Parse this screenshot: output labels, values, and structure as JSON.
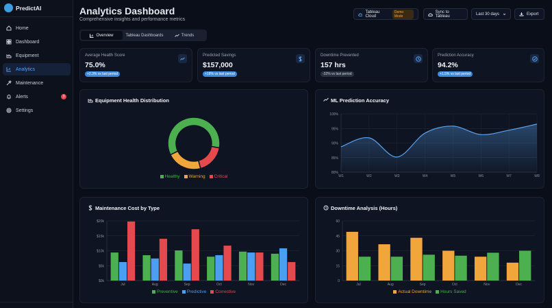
{
  "sidebar": {
    "brand": "PredictAI",
    "nav": [
      {
        "label": "Home"
      },
      {
        "label": "Dashboard"
      },
      {
        "label": "Equipment"
      },
      {
        "label": "Analytics"
      },
      {
        "label": "Maintenance"
      },
      {
        "label": "Alerts",
        "badge": "3"
      },
      {
        "label": "Settings"
      }
    ]
  },
  "header": {
    "title": "Analytics Dashboard",
    "subtitle": "Comprehensive insights and performance metrics",
    "tableau": "Tableau Cloud",
    "demo": "Demo Mode",
    "sync": "Sync to Tableau",
    "range": "Last 30 days",
    "export": "Export"
  },
  "tabs": [
    "Overview",
    "Tableau Dashboards",
    "Trends"
  ],
  "kpis": [
    {
      "label": "Average Health Score",
      "value": "75.0%",
      "change": "+2.3% vs last period"
    },
    {
      "label": "Predicted Savings",
      "value": "$157,000",
      "change": "+18% vs last period"
    },
    {
      "label": "Downtime Prevented",
      "value": "157 hrs",
      "change": "-32% vs last period"
    },
    {
      "label": "Prediction Accuracy",
      "value": "94.2%",
      "change": "+1.5% vs last period"
    }
  ],
  "chart_data": [
    {
      "type": "pie",
      "title": "Equipment Health Distribution",
      "categories": [
        "Healthy",
        "Warning",
        "Critical"
      ],
      "values": [
        60,
        22,
        18
      ],
      "colors": [
        "#4caf50",
        "#f0a63a",
        "#e5484d"
      ],
      "donut": true
    },
    {
      "type": "line",
      "title": "ML Prediction Accuracy",
      "categories": [
        "W1",
        "W2",
        "W3",
        "W4",
        "W5",
        "W6",
        "W7",
        "W8"
      ],
      "values": [
        88.7,
        91.8,
        85.2,
        93.4,
        95.8,
        92.9,
        94.4,
        96.5
      ],
      "color": "#5aa4f0",
      "ylim": [
        80,
        100
      ],
      "yticks": [
        {
          "value": 80,
          "label": "80%"
        },
        {
          "value": 85,
          "label": "85%"
        },
        {
          "value": 90,
          "label": "90%"
        },
        {
          "value": 95,
          "label": "95%"
        },
        {
          "value": 100,
          "label": "100%"
        }
      ],
      "grid": true
    },
    {
      "type": "bar",
      "title": "Maintenance Cost by Type",
      "categories": [
        "Jul",
        "Aug",
        "Sep",
        "Oct",
        "Nov",
        "Dec"
      ],
      "series": [
        {
          "name": "Preventive",
          "color": "#4caf50",
          "values": [
            9400,
            8500,
            10100,
            8000,
            9700,
            9000
          ]
        },
        {
          "name": "Predictive",
          "color": "#4a9ff0",
          "values": [
            6200,
            7400,
            5700,
            8500,
            9400,
            10800
          ]
        },
        {
          "name": "Corrective",
          "color": "#e5484d",
          "values": [
            19800,
            14000,
            17200,
            11700,
            9400,
            6200
          ]
        }
      ],
      "ylim": [
        0,
        20000
      ],
      "yticks": [
        {
          "value": 0,
          "label": "$0k"
        },
        {
          "value": 5000,
          "label": "$5k"
        },
        {
          "value": 10000,
          "label": "$10k"
        },
        {
          "value": 15000,
          "label": "$15k"
        },
        {
          "value": 20000,
          "label": "$20k"
        }
      ],
      "grid": true
    },
    {
      "type": "bar",
      "title": "Downtime Analysis (Hours)",
      "categories": [
        "Jul",
        "Aug",
        "Sep",
        "Oct",
        "Nov",
        "Dec"
      ],
      "series": [
        {
          "name": "Actual Downtime",
          "color": "#f0a63a",
          "values": [
            49,
            36.5,
            43,
            30,
            24,
            18
          ]
        },
        {
          "name": "Hours Saved",
          "color": "#4caf50",
          "values": [
            24,
            24,
            26,
            25,
            28,
            30
          ]
        }
      ],
      "ylim": [
        0,
        60
      ],
      "yticks": [
        0,
        15,
        30,
        45,
        60
      ],
      "grid": true
    }
  ]
}
